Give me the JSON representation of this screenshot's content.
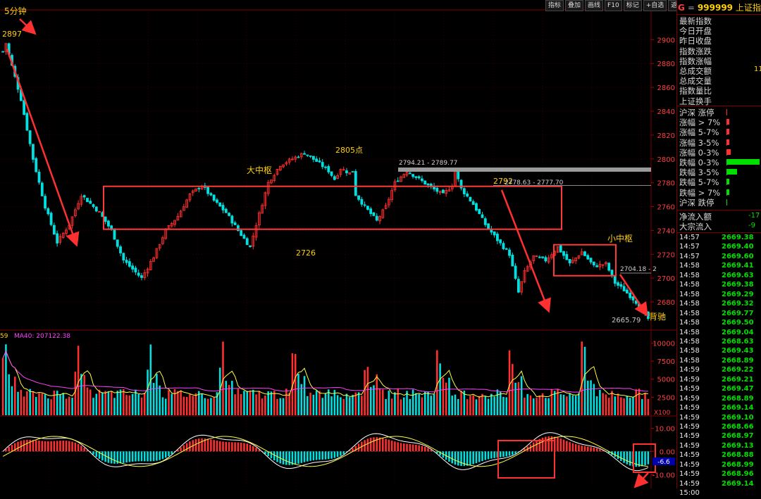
{
  "toolbar": [
    "指标",
    "叠加",
    "画线",
    "F10",
    "标记",
    "+自选",
    "返回"
  ],
  "timeframe_label": "5分钟",
  "symbol": {
    "g": "G",
    "eq": "=",
    "code": "999999",
    "name": "上证指数"
  },
  "info_labels": [
    "最新指数",
    "今日开盘",
    "昨日收盘",
    "指数涨跌",
    "指数涨幅",
    "总成交额",
    "总成交量",
    "指数量比",
    "上证换手"
  ],
  "info_partial": {
    "amount": "11"
  },
  "breadth": {
    "labels": [
      "沪深 涨停",
      "涨幅 > 7%",
      "涨幅 5-7%",
      "涨幅 3-5%",
      "涨幅 0-3%",
      "跌幅 0-3%",
      "跌幅 3-5%",
      "跌幅 5-7%",
      "跌幅 > 7%",
      "沪深 跌停"
    ],
    "bar_fractions": [
      0,
      0.02,
      0.01,
      0.01,
      0.1,
      0.95,
      0.3,
      0.06,
      0.04,
      0
    ],
    "bar_colors": [
      "#ff3030",
      "#ff3030",
      "#ff3030",
      "#ff3030",
      "#ff3030",
      "#00e000",
      "#00e000",
      "#00e000",
      "#00e000",
      "#00e000"
    ]
  },
  "flow": {
    "labels": [
      "净流入额",
      "大宗流入"
    ],
    "values": [
      "-17",
      "-9"
    ]
  },
  "ticks": {
    "times": [
      "14:57",
      "14:57",
      "14:57",
      "14:58",
      "14:58",
      "14:58",
      "14:58",
      "14:58",
      "14:58",
      "14:58",
      "14:58",
      "14:58",
      "14:58",
      "14:58",
      "14:59",
      "14:59",
      "14:59",
      "14:59",
      "14:59",
      "14:59",
      "14:59",
      "14:59",
      "14:59",
      "14:59",
      "14:59",
      "14:59",
      "14:59",
      "15:00"
    ],
    "prices": [
      "2669.38",
      "2669.40",
      "2669.60",
      "2669.41",
      "2669.63",
      "2669.38",
      "2669.29",
      "2669.32",
      "2669.77",
      "2669.50",
      "2669.04",
      "2668.63",
      "2669.43",
      "2668.89",
      "2669.22",
      "2669.21",
      "2669.47",
      "2668.89",
      "2669.14",
      "2669.10",
      "2668.66",
      "2668.97",
      "2669.13",
      "2668.88",
      "2668.99",
      "2668.96",
      "2669.14"
    ]
  },
  "chart_data": [
    {
      "type": "candlestick",
      "y_ticks": [
        2680,
        2700,
        2720,
        2740,
        2760,
        2780,
        2800,
        2820,
        2840,
        2860,
        2880,
        2900
      ],
      "ylim": [
        2657,
        2925
      ],
      "key_points": [
        {
          "label": "2897",
          "value": 2897
        },
        {
          "label": "2726",
          "value": 2726
        },
        {
          "label": "2805点",
          "value": 2805
        },
        {
          "label": "2792",
          "value": 2792
        },
        {
          "label": "2665.79",
          "value": 2665.79
        }
      ],
      "annotations": {
        "big_pivot": "大中枢",
        "small_pivot": "小中枢",
        "divergence": "背驰",
        "range1": "2794.21 - 2789.77",
        "range2": "2778.63 - 2777.70",
        "range3": "2704.18 - 2"
      },
      "big_pivot_range": [
        2741,
        2777
      ],
      "small_pivot_range": [
        2702,
        2728
      ],
      "gray_line_value": 2791,
      "path": [
        [
          0,
          2890
        ],
        [
          1,
          2897
        ],
        [
          3,
          2878
        ],
        [
          6,
          2850
        ],
        [
          10,
          2800
        ],
        [
          14,
          2760
        ],
        [
          18,
          2730
        ],
        [
          22,
          2745
        ],
        [
          26,
          2770
        ],
        [
          32,
          2755
        ],
        [
          36,
          2740
        ],
        [
          40,
          2715
        ],
        [
          46,
          2700
        ],
        [
          50,
          2718
        ],
        [
          54,
          2740
        ],
        [
          58,
          2752
        ],
        [
          62,
          2770
        ],
        [
          66,
          2778
        ],
        [
          70,
          2765
        ],
        [
          74,
          2755
        ],
        [
          78,
          2740
        ],
        [
          82,
          2726
        ],
        [
          84,
          2745
        ],
        [
          88,
          2780
        ],
        [
          92,
          2795
        ],
        [
          96,
          2800
        ],
        [
          100,
          2805
        ],
        [
          104,
          2798
        ],
        [
          108,
          2790
        ],
        [
          110,
          2783
        ],
        [
          112,
          2792
        ],
        [
          115,
          2788
        ],
        [
          116,
          2790
        ],
        [
          117,
          2770
        ],
        [
          120,
          2760
        ],
        [
          124,
          2748
        ],
        [
          127,
          2760
        ],
        [
          130,
          2780
        ],
        [
          134,
          2790
        ],
        [
          138,
          2783
        ],
        [
          142,
          2776
        ],
        [
          146,
          2770
        ],
        [
          149,
          2778
        ],
        [
          150,
          2790
        ],
        [
          152,
          2775
        ],
        [
          156,
          2762
        ],
        [
          160,
          2745
        ],
        [
          164,
          2732
        ],
        [
          168,
          2720
        ],
        [
          171,
          2688
        ],
        [
          173,
          2705
        ],
        [
          176,
          2718
        ],
        [
          180,
          2715
        ],
        [
          184,
          2726
        ],
        [
          188,
          2712
        ],
        [
          192,
          2722
        ],
        [
          196,
          2710
        ],
        [
          200,
          2712
        ],
        [
          203,
          2696
        ],
        [
          206,
          2690
        ],
        [
          210,
          2680
        ],
        [
          214,
          2666
        ]
      ]
    },
    {
      "type": "bar",
      "name": "volume",
      "legend": [
        "59",
        "MA40: 207122.38"
      ],
      "unit": "X100",
      "y_ticks": [
        2500,
        5000,
        7500,
        10000
      ],
      "ylim": [
        0,
        11500
      ]
    },
    {
      "type": "bar",
      "name": "MACD",
      "y_ticks": [
        10.0,
        0.0,
        -10.0
      ],
      "current_value": "-6.6",
      "ylim": [
        -16,
        15
      ]
    }
  ]
}
